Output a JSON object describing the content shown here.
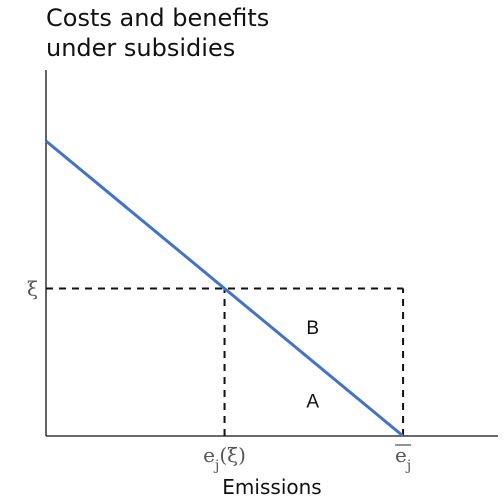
{
  "chart_data": {
    "type": "line",
    "title": [
      "Costs and benefits",
      "under subsidies"
    ],
    "xlabel": "Emissions",
    "ylabel": "",
    "xlim": [
      0,
      1
    ],
    "ylim": [
      0,
      1
    ],
    "series": [
      {
        "x": [
          0,
          0.79
        ],
        "y": [
          1,
          0
        ],
        "color": "#4472c4"
      }
    ],
    "reference_lines": [
      {
        "kind": "horizontal",
        "y": 0.5,
        "x_from": 0,
        "x_to": 0.79,
        "style": "dashed"
      },
      {
        "kind": "vertical",
        "x": 0.395,
        "y_from": 0,
        "y_to": 0.5,
        "style": "dashed"
      },
      {
        "kind": "vertical",
        "x": 0.79,
        "y_from": 0,
        "y_to": 0.5,
        "style": "dashed"
      }
    ],
    "x_ticks": [
      {
        "x": 0.395,
        "label": "e",
        "subscript": "j",
        "suffix": "(ξ)"
      },
      {
        "x": 0.79,
        "label": "e",
        "subscript": "j",
        "overline": true,
        "suffix": ""
      }
    ],
    "y_ticks": [
      {
        "y": 0.5,
        "label": "ξ"
      }
    ],
    "annotations": [
      {
        "text": "B",
        "x": 0.59,
        "y": 0.37
      },
      {
        "text": "A",
        "x": 0.59,
        "y": 0.12
      }
    ],
    "grid": false,
    "colors": {
      "line": "#4472c4",
      "axis": "#111111",
      "dash": "#111111"
    }
  }
}
